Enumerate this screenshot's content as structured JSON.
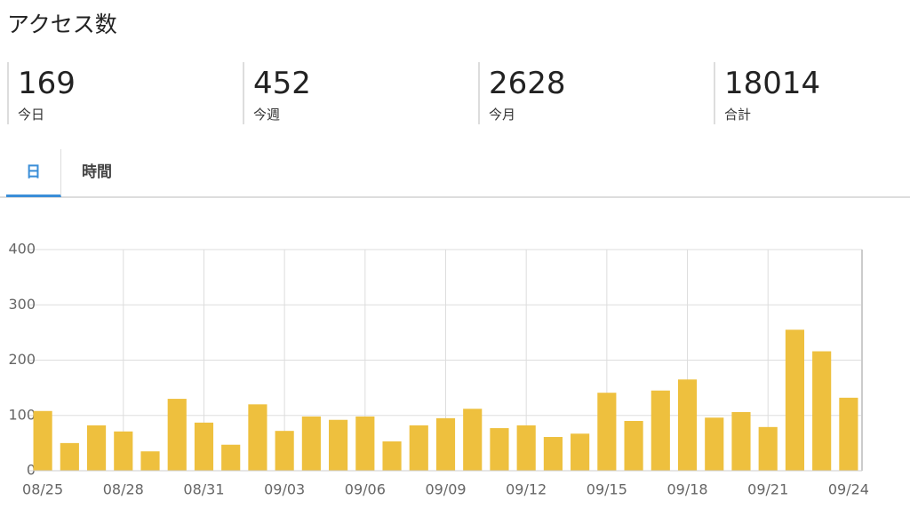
{
  "header": {
    "title": "アクセス数"
  },
  "stats": [
    {
      "value": 169,
      "label": "今日"
    },
    {
      "value": 452,
      "label": "今週"
    },
    {
      "value": 2628,
      "label": "今月"
    },
    {
      "value": 18014,
      "label": "合計"
    }
  ],
  "tabs": [
    "日",
    "時間"
  ],
  "chart_data": {
    "type": "bar",
    "categories": [
      "08/25",
      null,
      null,
      "08/28",
      null,
      null,
      "08/31",
      null,
      null,
      "09/03",
      null,
      null,
      "09/06",
      null,
      null,
      "09/09",
      null,
      null,
      "09/12",
      null,
      null,
      "09/15",
      null,
      null,
      "09/18",
      null,
      null,
      "09/21",
      null,
      null,
      "09/24"
    ],
    "values": [
      108,
      50,
      82,
      71,
      35,
      130,
      87,
      47,
      120,
      72,
      98,
      92,
      98,
      53,
      82,
      95,
      112,
      77,
      82,
      61,
      67,
      141,
      90,
      145,
      165,
      96,
      106,
      79,
      255,
      216,
      132
    ],
    "color": "#eec03e",
    "ylim": [
      0,
      400
    ],
    "yticks": [
      0,
      100,
      200,
      300,
      400
    ],
    "grid": true
  }
}
